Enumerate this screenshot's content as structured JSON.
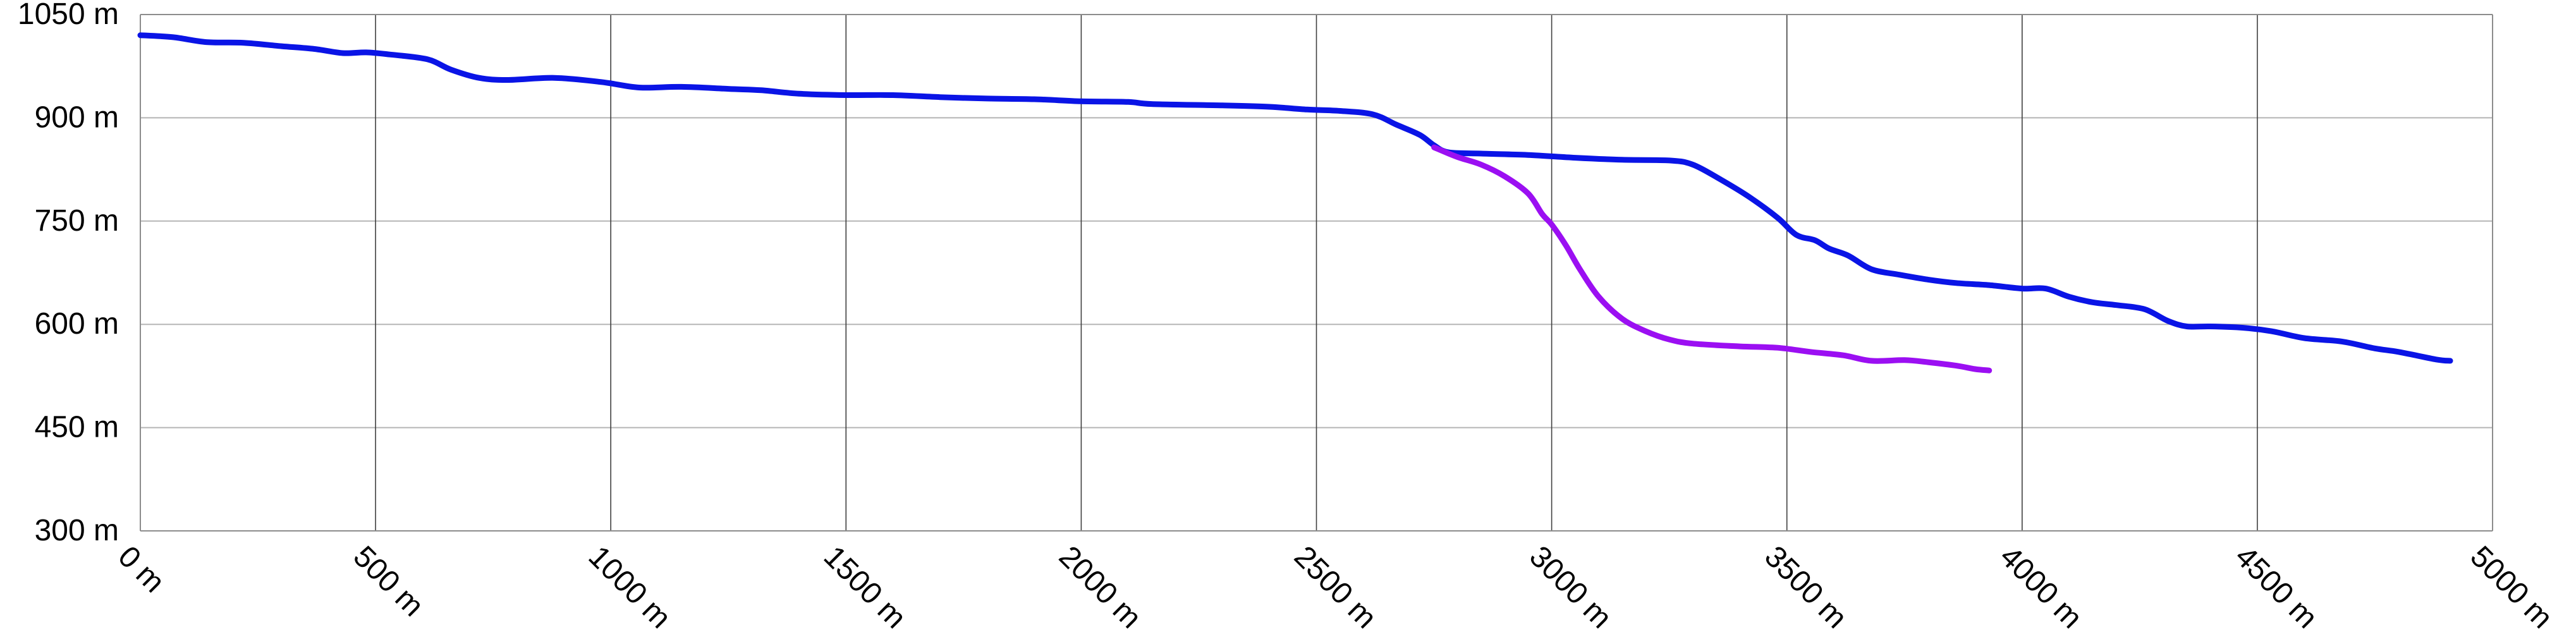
{
  "chart_data": {
    "type": "line",
    "title": "",
    "xlabel": "",
    "ylabel": "",
    "xlim": [
      0,
      5000
    ],
    "ylim": [
      300,
      1050
    ],
    "grid": true,
    "x_ticks": [
      0,
      500,
      1000,
      1500,
      2000,
      2500,
      3000,
      3500,
      4000,
      4500,
      5000
    ],
    "x_tick_labels": [
      "0 m",
      "500 m",
      "1000 m",
      "1500 m",
      "2000 m",
      "2500 m",
      "3000 m",
      "3500 m",
      "4000 m",
      "4500 m",
      "5000 m"
    ],
    "y_ticks": [
      300,
      450,
      600,
      750,
      900,
      1050
    ],
    "y_tick_labels": [
      "300 m",
      "450 m",
      "600 m",
      "750 m",
      "900 m",
      "1050 m"
    ],
    "series": [
      {
        "color": "#0a14e6",
        "points": [
          [
            0,
            1020
          ],
          [
            70,
            1017
          ],
          [
            140,
            1010
          ],
          [
            220,
            1009
          ],
          [
            300,
            1004
          ],
          [
            370,
            1000
          ],
          [
            430,
            994
          ],
          [
            480,
            995
          ],
          [
            530,
            992
          ],
          [
            610,
            985
          ],
          [
            660,
            970
          ],
          [
            720,
            958
          ],
          [
            780,
            955
          ],
          [
            880,
            958
          ],
          [
            980,
            952
          ],
          [
            1060,
            944
          ],
          [
            1150,
            945
          ],
          [
            1250,
            942
          ],
          [
            1320,
            940
          ],
          [
            1400,
            935
          ],
          [
            1500,
            933
          ],
          [
            1600,
            933
          ],
          [
            1700,
            930
          ],
          [
            1800,
            928
          ],
          [
            1900,
            927
          ],
          [
            2000,
            924
          ],
          [
            2100,
            923
          ],
          [
            2150,
            920
          ],
          [
            2300,
            918
          ],
          [
            2400,
            916
          ],
          [
            2480,
            912
          ],
          [
            2550,
            910
          ],
          [
            2620,
            905
          ],
          [
            2670,
            890
          ],
          [
            2720,
            875
          ],
          [
            2750,
            860
          ],
          [
            2780,
            850
          ],
          [
            2850,
            848
          ],
          [
            2950,
            846
          ],
          [
            3050,
            842
          ],
          [
            3150,
            839
          ],
          [
            3250,
            838
          ],
          [
            3300,
            832
          ],
          [
            3360,
            810
          ],
          [
            3420,
            785
          ],
          [
            3480,
            755
          ],
          [
            3520,
            730
          ],
          [
            3560,
            722
          ],
          [
            3590,
            710
          ],
          [
            3630,
            700
          ],
          [
            3680,
            680
          ],
          [
            3740,
            672
          ],
          [
            3800,
            665
          ],
          [
            3860,
            660
          ],
          [
            3930,
            657
          ],
          [
            4000,
            652
          ],
          [
            4050,
            652
          ],
          [
            4100,
            640
          ],
          [
            4150,
            632
          ],
          [
            4200,
            628
          ],
          [
            4260,
            622
          ],
          [
            4310,
            605
          ],
          [
            4350,
            597
          ],
          [
            4400,
            597
          ],
          [
            4470,
            595
          ],
          [
            4530,
            590
          ],
          [
            4600,
            580
          ],
          [
            4680,
            575
          ],
          [
            4750,
            565
          ],
          [
            4800,
            560
          ],
          [
            4880,
            549
          ],
          [
            4910,
            547
          ]
        ]
      },
      {
        "color": "#9b0ff2",
        "points": [
          [
            2750,
            857
          ],
          [
            2800,
            843
          ],
          [
            2850,
            832
          ],
          [
            2900,
            815
          ],
          [
            2950,
            790
          ],
          [
            2980,
            760
          ],
          [
            3000,
            745
          ],
          [
            3030,
            715
          ],
          [
            3060,
            680
          ],
          [
            3100,
            640
          ],
          [
            3150,
            608
          ],
          [
            3200,
            590
          ],
          [
            3250,
            578
          ],
          [
            3300,
            572
          ],
          [
            3400,
            568
          ],
          [
            3480,
            566
          ],
          [
            3550,
            560
          ],
          [
            3620,
            555
          ],
          [
            3680,
            547
          ],
          [
            3750,
            548
          ],
          [
            3800,
            545
          ],
          [
            3860,
            540
          ],
          [
            3900,
            535
          ],
          [
            3930,
            533
          ]
        ]
      }
    ]
  }
}
